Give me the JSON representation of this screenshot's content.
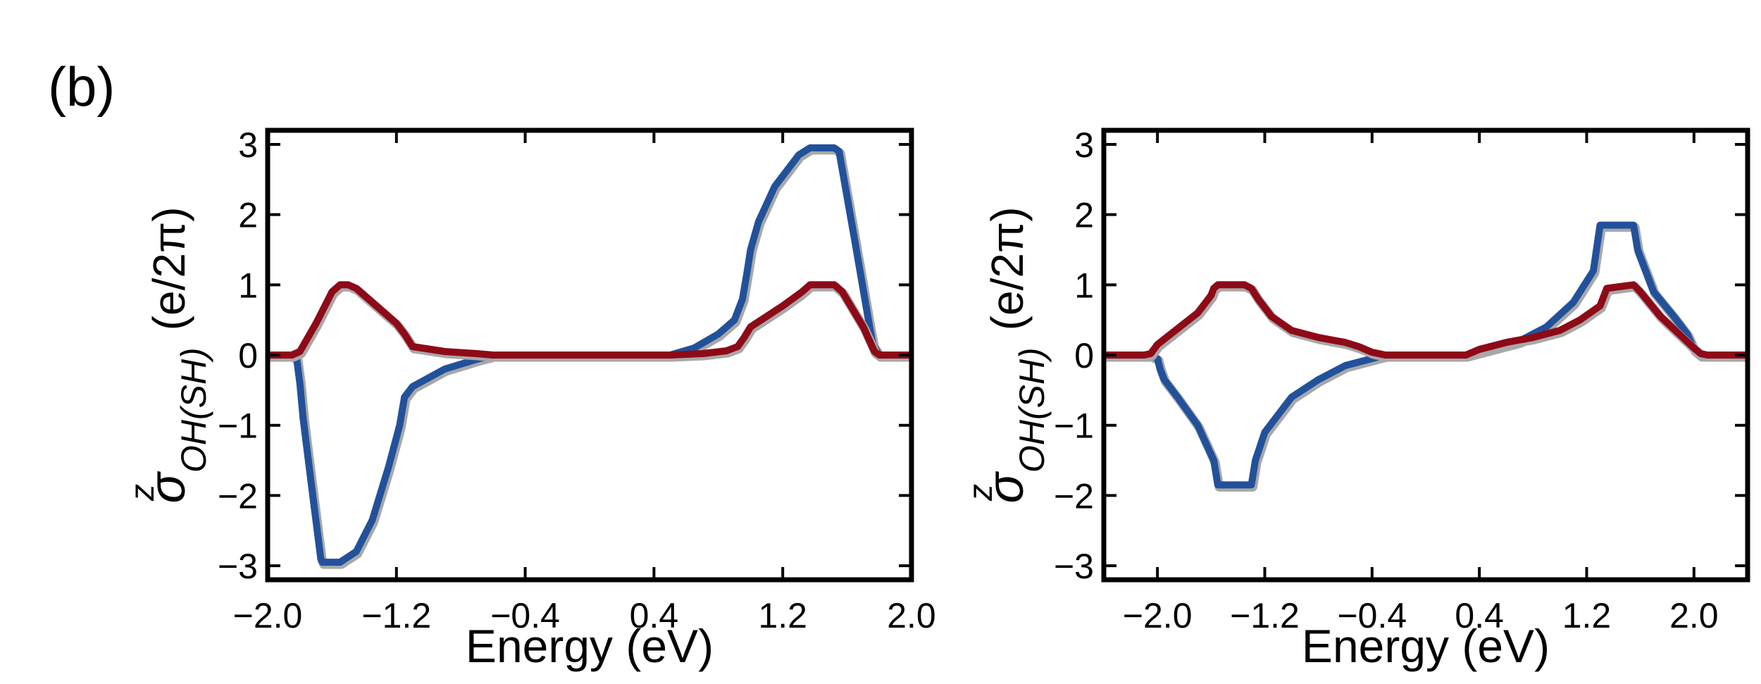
{
  "figure": {
    "panel_label": "(b)"
  },
  "colors": {
    "blue": "#22519b",
    "red": "#8e0a17",
    "shadow": "#a8a8a8",
    "axis": "#000000"
  },
  "chart_data": [
    {
      "type": "line",
      "title": "",
      "xlabel": "Energy (eV)",
      "ylabel_main": "σ",
      "ylabel_sup": "z",
      "ylabel_sub": "OH(SH)",
      "ylabel_units": "(e/2π)",
      "xlim": [
        -2.0,
        2.0
      ],
      "ylim": [
        -3.2,
        3.2
      ],
      "xticks": [
        -2.0,
        -1.2,
        -0.4,
        0.4,
        1.2,
        2.0
      ],
      "xtick_labels": [
        "−2.0",
        "−1.2",
        "−0.4",
        "0.4",
        "1.2",
        "2.0"
      ],
      "yticks": [
        -3,
        -2,
        -1,
        0,
        1,
        2,
        3
      ],
      "ytick_labels": [
        "−3",
        "−2",
        "−1",
        "0",
        "1",
        "2",
        "3"
      ],
      "series": [
        {
          "name": "blue",
          "color": "#22519b",
          "x": [
            -2.0,
            -1.85,
            -1.82,
            -1.8,
            -1.78,
            -1.72,
            -1.67,
            -1.66,
            -1.62,
            -1.55,
            -1.45,
            -1.35,
            -1.25,
            -1.18,
            -1.15,
            -1.1,
            -0.9,
            -0.7,
            -0.6,
            -0.5,
            0.2,
            0.5,
            0.65,
            0.8,
            0.9,
            0.95,
            0.98,
            1.0,
            1.05,
            1.15,
            1.3,
            1.37,
            1.52,
            1.55,
            1.65,
            1.74,
            1.76,
            1.8,
            2.0
          ],
          "y": [
            0,
            0,
            -0.05,
            -0.4,
            -0.9,
            -2.0,
            -2.9,
            -2.95,
            -2.95,
            -2.95,
            -2.8,
            -2.35,
            -1.6,
            -1.0,
            -0.6,
            -0.45,
            -0.2,
            -0.06,
            0,
            0,
            0,
            0,
            0.1,
            0.3,
            0.5,
            0.8,
            1.2,
            1.5,
            1.9,
            2.4,
            2.85,
            2.95,
            2.95,
            2.9,
            1.6,
            0.4,
            0.15,
            0,
            0
          ]
        },
        {
          "name": "red",
          "color": "#8e0a17",
          "x": [
            -2.0,
            -1.85,
            -1.8,
            -1.7,
            -1.6,
            -1.55,
            -1.5,
            -1.45,
            -1.35,
            -1.2,
            -1.15,
            -1.1,
            -0.9,
            -0.7,
            -0.6,
            -0.5,
            0.2,
            0.5,
            0.7,
            0.85,
            0.92,
            0.96,
            1.0,
            1.1,
            1.2,
            1.32,
            1.37,
            1.52,
            1.57,
            1.7,
            1.77,
            1.8,
            2.0
          ],
          "y": [
            0,
            0,
            0.05,
            0.45,
            0.9,
            1.0,
            1.0,
            0.95,
            0.75,
            0.45,
            0.3,
            0.12,
            0.05,
            0.02,
            0,
            0,
            0,
            0,
            0.02,
            0.06,
            0.12,
            0.25,
            0.4,
            0.55,
            0.7,
            0.9,
            1.0,
            1.0,
            0.9,
            0.4,
            0.05,
            0,
            0
          ]
        }
      ]
    },
    {
      "type": "line",
      "title": "",
      "xlabel": "Energy (eV)",
      "ylabel_main": "σ",
      "ylabel_sup": "z",
      "ylabel_sub": "OH(SH)",
      "ylabel_units": "(e/2π)",
      "xlim": [
        -2.4,
        2.4
      ],
      "ylim": [
        -3.2,
        3.2
      ],
      "xticks": [
        -2.0,
        -1.2,
        -0.4,
        0.4,
        1.2,
        2.0
      ],
      "xtick_labels": [
        "−2.0",
        "−1.2",
        "−0.4",
        "0.4",
        "1.2",
        "2.0"
      ],
      "yticks": [
        -3,
        -2,
        -1,
        0,
        1,
        2,
        3
      ],
      "ytick_labels": [
        "−3",
        "−2",
        "−1",
        "0",
        "1",
        "2",
        "3"
      ],
      "series": [
        {
          "name": "blue",
          "color": "#22519b",
          "x": [
            -2.4,
            -2.05,
            -2.0,
            -1.98,
            -1.95,
            -1.85,
            -1.7,
            -1.58,
            -1.55,
            -1.3,
            -1.27,
            -1.2,
            -1.0,
            -0.8,
            -0.6,
            -0.4,
            -0.3,
            0.3,
            0.5,
            0.7,
            0.9,
            1.1,
            1.25,
            1.3,
            1.55,
            1.58,
            1.7,
            1.85,
            1.95,
            2.0,
            2.05,
            2.4
          ],
          "y": [
            0,
            0,
            -0.05,
            -0.2,
            -0.35,
            -0.6,
            -1.0,
            -1.5,
            -1.85,
            -1.85,
            -1.5,
            -1.1,
            -0.6,
            -0.35,
            -0.15,
            -0.05,
            0,
            0,
            0.1,
            0.2,
            0.4,
            0.75,
            1.2,
            1.85,
            1.85,
            1.5,
            0.9,
            0.55,
            0.3,
            0.08,
            0,
            0
          ]
        },
        {
          "name": "red",
          "color": "#8e0a17",
          "x": [
            -2.4,
            -2.1,
            -2.05,
            -2.0,
            -1.9,
            -1.8,
            -1.7,
            -1.6,
            -1.58,
            -1.55,
            -1.35,
            -1.3,
            -1.25,
            -1.15,
            -1.0,
            -0.8,
            -0.6,
            -0.5,
            -0.4,
            -0.3,
            0.3,
            0.4,
            0.6,
            0.8,
            1.0,
            1.15,
            1.3,
            1.35,
            1.55,
            1.6,
            1.75,
            1.9,
            2.0,
            2.05,
            2.1,
            2.4
          ],
          "y": [
            0,
            0,
            0.02,
            0.15,
            0.3,
            0.45,
            0.6,
            0.85,
            0.95,
            1.0,
            1.0,
            0.95,
            0.8,
            0.55,
            0.35,
            0.25,
            0.18,
            0.12,
            0.04,
            0,
            0,
            0.08,
            0.18,
            0.25,
            0.35,
            0.5,
            0.7,
            0.95,
            1.0,
            0.9,
            0.55,
            0.28,
            0.1,
            0.02,
            0,
            0
          ]
        }
      ]
    }
  ]
}
